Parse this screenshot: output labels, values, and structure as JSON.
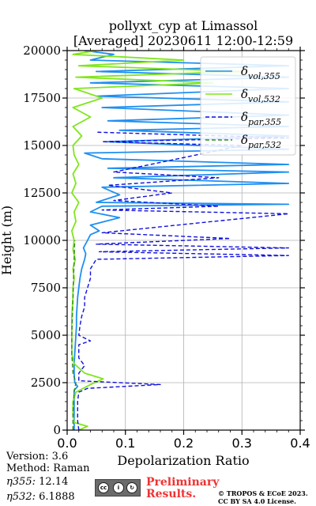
{
  "chart_data": {
    "type": "line",
    "title_line1": "pollyxt_cyp at Limassol",
    "title_line2": "[Averaged] 20230611 12:00-12:59",
    "xlabel": "Depolarization Ratio",
    "ylabel": "Height (m)",
    "xlim": [
      0,
      0.4
    ],
    "ylim": [
      0,
      20000
    ],
    "x_ticks": [
      "0.0",
      "0.1",
      "0.2",
      "0.3",
      "0.4"
    ],
    "y_ticks": [
      "0",
      "2500",
      "5000",
      "7500",
      "10000",
      "12500",
      "15000",
      "17500",
      "20000"
    ],
    "grid": true,
    "legend_position": "top-right",
    "series": [
      {
        "name": "vol,355",
        "color": "#1f8ff0",
        "dash": "solid",
        "points": [
          [
            0.012,
            0
          ],
          [
            0.012,
            300
          ],
          [
            0.012,
            800
          ],
          [
            0.012,
            1500
          ],
          [
            0.012,
            2100
          ],
          [
            0.018,
            2300
          ],
          [
            0.013,
            2500
          ],
          [
            0.012,
            3000
          ],
          [
            0.012,
            3500
          ],
          [
            0.013,
            4000
          ],
          [
            0.014,
            4500
          ],
          [
            0.015,
            5000
          ],
          [
            0.016,
            5500
          ],
          [
            0.016,
            6000
          ],
          [
            0.017,
            6500
          ],
          [
            0.018,
            7000
          ],
          [
            0.02,
            7500
          ],
          [
            0.022,
            8000
          ],
          [
            0.025,
            8500
          ],
          [
            0.03,
            9000
          ],
          [
            0.032,
            9300
          ],
          [
            0.028,
            9600
          ],
          [
            0.035,
            10000
          ],
          [
            0.04,
            10300
          ],
          [
            0.055,
            10500
          ],
          [
            0.04,
            10800
          ],
          [
            0.09,
            11200
          ],
          [
            0.04,
            11500
          ],
          [
            0.06,
            11800
          ],
          [
            0.38,
            11900
          ],
          [
            0.05,
            12000
          ],
          [
            0.09,
            12400
          ],
          [
            0.06,
            12800
          ],
          [
            0.38,
            13000
          ],
          [
            0.08,
            13300
          ],
          [
            0.38,
            13600
          ],
          [
            0.07,
            13800
          ],
          [
            0.38,
            14000
          ],
          [
            0.06,
            14300
          ],
          [
            0.03,
            14600
          ],
          [
            0.38,
            14800
          ],
          [
            0.07,
            15200
          ],
          [
            0.38,
            15500
          ],
          [
            0.09,
            15800
          ],
          [
            0.38,
            16000
          ],
          [
            0.07,
            16300
          ],
          [
            0.38,
            16600
          ],
          [
            0.06,
            17000
          ],
          [
            0.38,
            17300
          ],
          [
            0.05,
            17600
          ],
          [
            0.38,
            18000
          ],
          [
            0.04,
            18300
          ],
          [
            0.38,
            18600
          ],
          [
            0.05,
            18900
          ],
          [
            0.38,
            19200
          ],
          [
            0.04,
            19500
          ],
          [
            0.08,
            19800
          ],
          [
            0.03,
            20000
          ]
        ]
      },
      {
        "name": "vol,532",
        "color": "#7fe61a",
        "dash": "solid",
        "points": [
          [
            0.02,
            0
          ],
          [
            0.035,
            200
          ],
          [
            0.012,
            400
          ],
          [
            0.01,
            800
          ],
          [
            0.01,
            1500
          ],
          [
            0.015,
            2000
          ],
          [
            0.04,
            2400
          ],
          [
            0.062,
            2700
          ],
          [
            0.03,
            3000
          ],
          [
            0.012,
            3500
          ],
          [
            0.008,
            4000
          ],
          [
            0.008,
            5000
          ],
          [
            0.008,
            6000
          ],
          [
            0.01,
            7000
          ],
          [
            0.01,
            7500
          ],
          [
            0.012,
            8000
          ],
          [
            0.01,
            8500
          ],
          [
            0.014,
            9000
          ],
          [
            0.01,
            9500
          ],
          [
            0.012,
            10000
          ],
          [
            0.008,
            10500
          ],
          [
            0.015,
            11000
          ],
          [
            0.012,
            11500
          ],
          [
            0.02,
            12000
          ],
          [
            0.008,
            12500
          ],
          [
            0.015,
            13000
          ],
          [
            0.01,
            13500
          ],
          [
            0.02,
            14000
          ],
          [
            0.012,
            14500
          ],
          [
            0.01,
            15000
          ],
          [
            0.025,
            15500
          ],
          [
            0.01,
            16000
          ],
          [
            0.04,
            16500
          ],
          [
            0.01,
            17000
          ],
          [
            0.06,
            17500
          ],
          [
            0.012,
            18000
          ],
          [
            0.25,
            18300
          ],
          [
            0.015,
            18600
          ],
          [
            0.3,
            18900
          ],
          [
            0.02,
            19200
          ],
          [
            0.2,
            19500
          ],
          [
            0.01,
            19800
          ],
          [
            0.05,
            20000
          ]
        ]
      },
      {
        "name": "par,355",
        "color": "#1010dd",
        "dash": "dashed",
        "points": [
          [
            0.02,
            0
          ],
          [
            0.018,
            500
          ],
          [
            0.018,
            1000
          ],
          [
            0.018,
            1500
          ],
          [
            0.02,
            2000
          ],
          [
            0.035,
            2200
          ],
          [
            0.16,
            2400
          ],
          [
            0.02,
            2600
          ],
          [
            0.02,
            3000
          ],
          [
            0.03,
            3400
          ],
          [
            0.02,
            3800
          ],
          [
            0.02,
            4500
          ],
          [
            0.04,
            4700
          ],
          [
            0.02,
            5000
          ],
          [
            0.022,
            5500
          ],
          [
            0.025,
            6000
          ],
          [
            0.03,
            6500
          ],
          [
            0.03,
            7000
          ],
          [
            0.035,
            7500
          ],
          [
            0.04,
            8000
          ],
          [
            0.04,
            8500
          ],
          [
            0.05,
            9000
          ],
          [
            0.38,
            9200
          ],
          [
            0.055,
            9400
          ],
          [
            0.38,
            9600
          ],
          [
            0.05,
            9800
          ],
          [
            0.28,
            10100
          ],
          [
            0.06,
            10400
          ],
          [
            0.38,
            11400
          ],
          [
            0.06,
            11600
          ],
          [
            0.26,
            11800
          ],
          [
            0.08,
            12100
          ],
          [
            0.18,
            12500
          ],
          [
            0.07,
            12900
          ],
          [
            0.26,
            13300
          ],
          [
            0.08,
            13600
          ],
          [
            0.3,
            15000
          ],
          [
            0.06,
            15200
          ],
          [
            0.38,
            15400
          ],
          [
            0.05,
            15700
          ]
        ]
      },
      {
        "name": "par,532",
        "color": "#2e8b1e",
        "dash": "dashed",
        "points": [
          [
            0.01,
            0
          ],
          [
            0.01,
            1000
          ],
          [
            0.012,
            2000
          ],
          [
            0.015,
            2500
          ],
          [
            0.01,
            3000
          ],
          [
            0.008,
            4000
          ],
          [
            0.008,
            5000
          ],
          [
            0.009,
            6000
          ],
          [
            0.01,
            7000
          ],
          [
            0.011,
            8000
          ],
          [
            0.012,
            9000
          ],
          [
            0.013,
            10000
          ]
        ]
      }
    ]
  },
  "footer": {
    "version": "Version: 3.6",
    "method": "Method: Raman",
    "eta355_label": "η355:",
    "eta355_value": "12.14",
    "eta532_label": "η532:",
    "eta532_value": "6.1888",
    "preliminary_line1": "Preliminary",
    "preliminary_line2": "Results.",
    "copyright_line1": "© TROPOS & ECoE 2023.",
    "copyright_line2": "CC BY SA 4.0 License."
  },
  "colors": {
    "preliminary": "#ee3333",
    "grid": "#b0b0b0"
  }
}
